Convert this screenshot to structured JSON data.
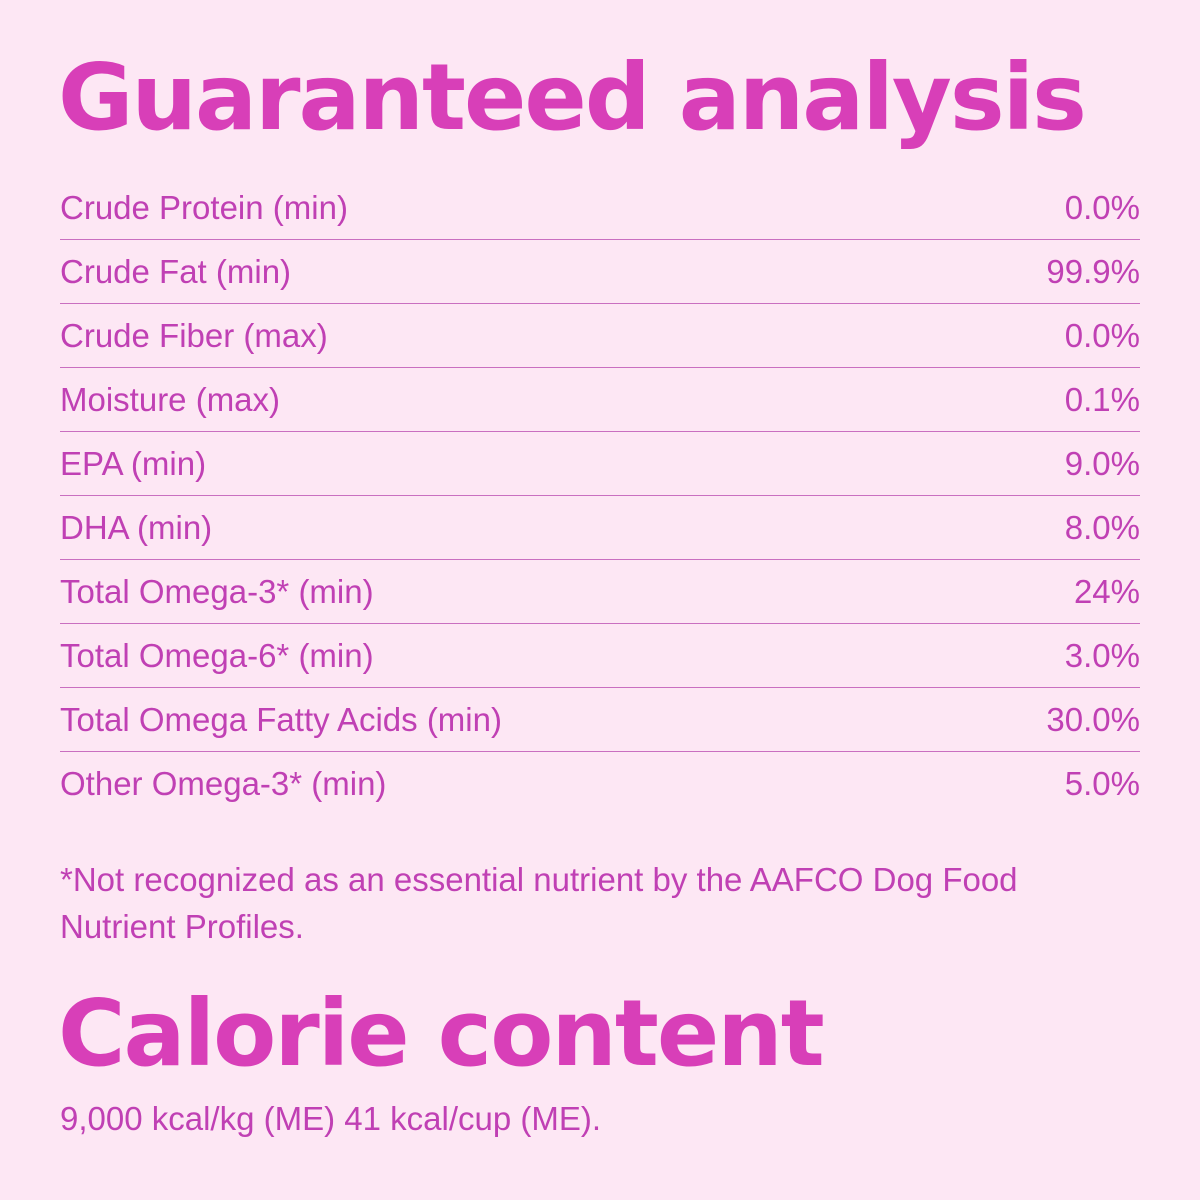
{
  "guaranteed_analysis": {
    "title": "Guaranteed analysis",
    "rows": [
      {
        "label": "Crude Protein (min)",
        "value": "0.0%"
      },
      {
        "label": "Crude Fat (min)",
        "value": "99.9%"
      },
      {
        "label": "Crude Fiber (max)",
        "value": "0.0%"
      },
      {
        "label": "Moisture (max)",
        "value": "0.1%"
      },
      {
        "label": "EPA (min)",
        "value": "9.0%"
      },
      {
        "label": "DHA (min)",
        "value": "8.0%"
      },
      {
        "label": "Total Omega-3* (min)",
        "value": "24%"
      },
      {
        "label": "Total Omega-6* (min)",
        "value": "3.0%"
      },
      {
        "label": "Total Omega Fatty Acids (min)",
        "value": "30.0%"
      },
      {
        "label": "Other Omega-3* (min)",
        "value": "5.0%"
      }
    ],
    "footnote": "*Not recognized as an essential nutrient by the AAFCO Dog Food Nutrient Profiles."
  },
  "calorie_content": {
    "title": "Calorie content",
    "text": "9,000 kcal/kg (ME) 41 kcal/cup (ME)."
  },
  "colors": {
    "background": "#fde7f4",
    "heading": "#d83fb8",
    "text": "#c040b4",
    "divider": "#c96fc0"
  }
}
